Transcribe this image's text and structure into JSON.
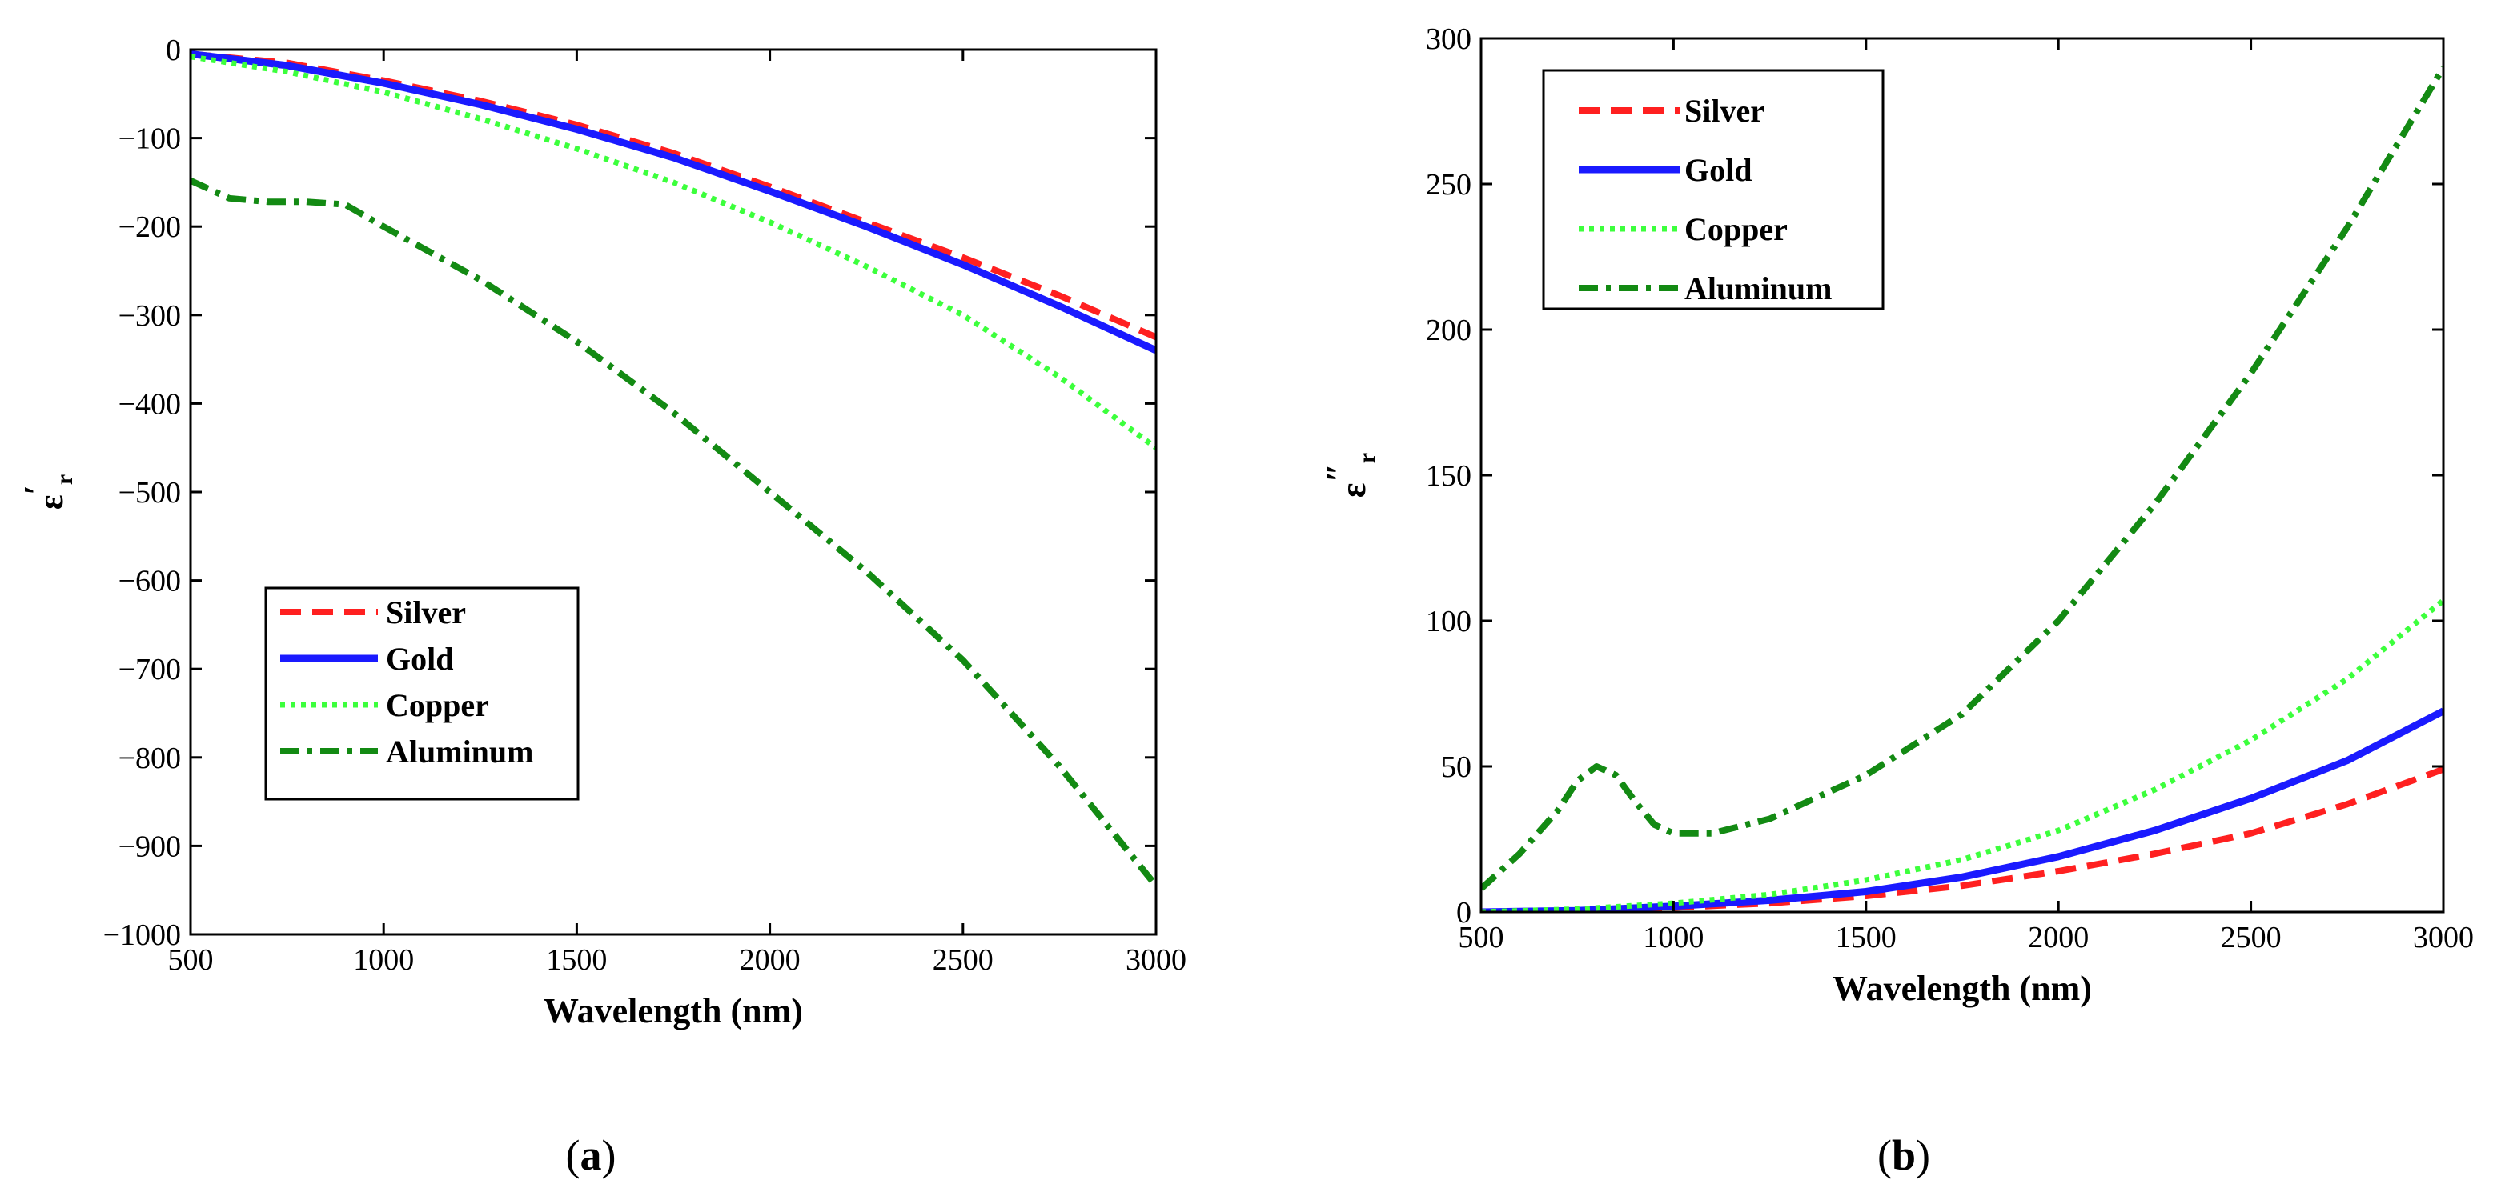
{
  "chart_data": [
    {
      "type": "line",
      "panel": "(a)",
      "panel_letter": "a",
      "xlabel": "Wavelength (nm)",
      "ylabel": "ε",
      "ylabel_sub": "r",
      "ylabel_mark": "′",
      "xlim": [
        500,
        3000
      ],
      "ylim": [
        -1000,
        0
      ],
      "xticks": [
        500,
        1000,
        1500,
        2000,
        2500,
        3000
      ],
      "yticks": [
        0,
        -100,
        -200,
        -300,
        -400,
        -500,
        -600,
        -700,
        -800,
        -900,
        -1000
      ],
      "ytick_labels": [
        "0",
        "−100",
        "−200",
        "−300",
        "−400",
        "−500",
        "−600",
        "−700",
        "−800",
        "−900",
        "−1000"
      ],
      "legend_position": "lower-left",
      "series": [
        {
          "name": "Silver",
          "color": "#ff2020",
          "style": "dashed",
          "x": [
            500,
            750,
            1000,
            1250,
            1500,
            1750,
            2000,
            2250,
            2500,
            2750,
            3000
          ],
          "y": [
            -5,
            -15,
            -35,
            -58,
            -85,
            -117,
            -155,
            -195,
            -235,
            -278,
            -325
          ]
        },
        {
          "name": "Gold",
          "color": "#1a1aff",
          "style": "solid",
          "x": [
            500,
            750,
            1000,
            1250,
            1500,
            1750,
            2000,
            2250,
            2500,
            2750,
            3000
          ],
          "y": [
            -5,
            -18,
            -38,
            -62,
            -90,
            -122,
            -160,
            -200,
            -243,
            -290,
            -340
          ]
        },
        {
          "name": "Copper",
          "color": "#3cff3c",
          "style": "dotted",
          "x": [
            500,
            750,
            1000,
            1250,
            1500,
            1750,
            2000,
            2250,
            2500,
            2750,
            3000
          ],
          "y": [
            -8,
            -25,
            -48,
            -78,
            -112,
            -150,
            -195,
            -245,
            -300,
            -370,
            -450
          ]
        },
        {
          "name": "Aluminum",
          "color": "#138a13",
          "style": "dashdot",
          "x": [
            500,
            600,
            700,
            800,
            900,
            1000,
            1250,
            1500,
            1750,
            2000,
            2250,
            2500,
            2750,
            3000
          ],
          "y": [
            -148,
            -168,
            -172,
            -172,
            -175,
            -200,
            -260,
            -330,
            -410,
            -500,
            -590,
            -690,
            -810,
            -945
          ]
        }
      ]
    },
    {
      "type": "line",
      "panel": "(b)",
      "panel_letter": "b",
      "xlabel": "Wavelength (nm)",
      "ylabel": "ε",
      "ylabel_sub": "r",
      "ylabel_mark": "″",
      "xlim": [
        500,
        3000
      ],
      "ylim": [
        0,
        300
      ],
      "xticks": [
        500,
        1000,
        1500,
        2000,
        2500,
        3000
      ],
      "yticks": [
        0,
        50,
        100,
        150,
        200,
        250,
        300
      ],
      "ytick_labels": [
        "0",
        "50",
        "100",
        "150",
        "200",
        "250",
        "300"
      ],
      "legend_position": "top-left",
      "series": [
        {
          "name": "Silver",
          "color": "#ff2020",
          "style": "dashed",
          "x": [
            500,
            750,
            1000,
            1250,
            1500,
            1750,
            2000,
            2250,
            2500,
            2750,
            3000
          ],
          "y": [
            0,
            0.5,
            1.5,
            3,
            5.5,
            9,
            14,
            20,
            27,
            37,
            49
          ]
        },
        {
          "name": "Gold",
          "color": "#1a1aff",
          "style": "solid",
          "x": [
            500,
            750,
            1000,
            1250,
            1500,
            1750,
            2000,
            2250,
            2500,
            2750,
            3000
          ],
          "y": [
            0,
            0.5,
            2,
            4,
            7,
            12,
            19,
            28,
            39,
            52,
            69
          ]
        },
        {
          "name": "Copper",
          "color": "#3cff3c",
          "style": "dotted",
          "x": [
            500,
            750,
            1000,
            1250,
            1500,
            1750,
            2000,
            2250,
            2500,
            2750,
            3000
          ],
          "y": [
            0,
            1,
            3,
            6,
            11,
            18,
            28,
            42,
            59,
            80,
            107
          ]
        },
        {
          "name": "Aluminum",
          "color": "#138a13",
          "style": "dashdot",
          "x": [
            500,
            600,
            700,
            750,
            800,
            850,
            900,
            950,
            1000,
            1100,
            1250,
            1500,
            1750,
            2000,
            2250,
            2500,
            2750,
            3000
          ],
          "y": [
            8,
            20,
            35,
            45,
            50,
            47,
            38,
            30,
            27,
            27,
            32,
            47,
            68,
            100,
            140,
            185,
            235,
            290
          ]
        }
      ]
    }
  ]
}
